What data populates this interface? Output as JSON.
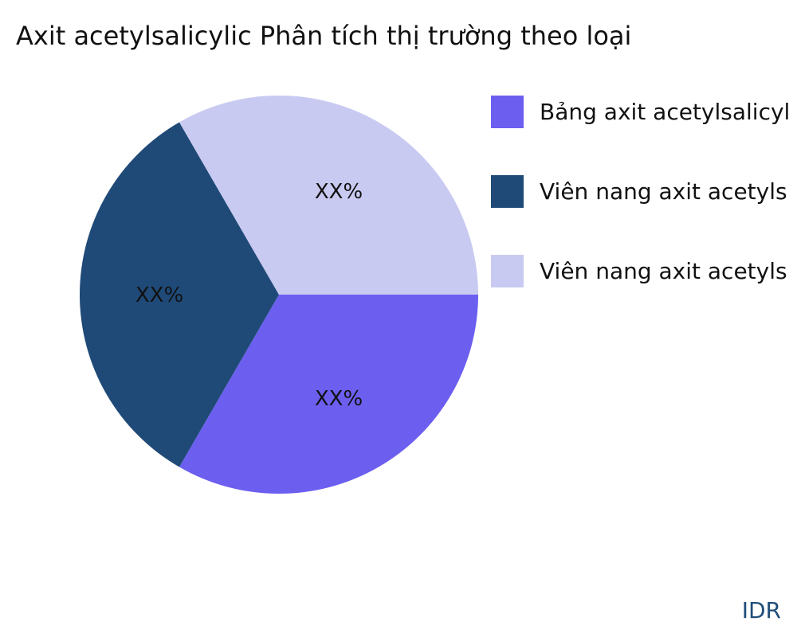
{
  "chart_data": {
    "type": "pie",
    "title": "Axit acetylsalicylic Phân tích thị trường theo loại",
    "slices": [
      {
        "name": "Bảng axit acetylsalicyl",
        "value": 33.33,
        "label": "XX%",
        "color": "#6c5ff0"
      },
      {
        "name": "Viên nang axit acetyls",
        "value": 33.33,
        "label": "XX%",
        "color": "#1f4a78"
      },
      {
        "name": "Viên nang axit acetyls",
        "value": 33.33,
        "label": "XX%",
        "color": "#c9caf1"
      }
    ],
    "legend_placement": "right",
    "start_angle": "3 o'clock",
    "direction": "clockwise"
  },
  "source": "IDR"
}
